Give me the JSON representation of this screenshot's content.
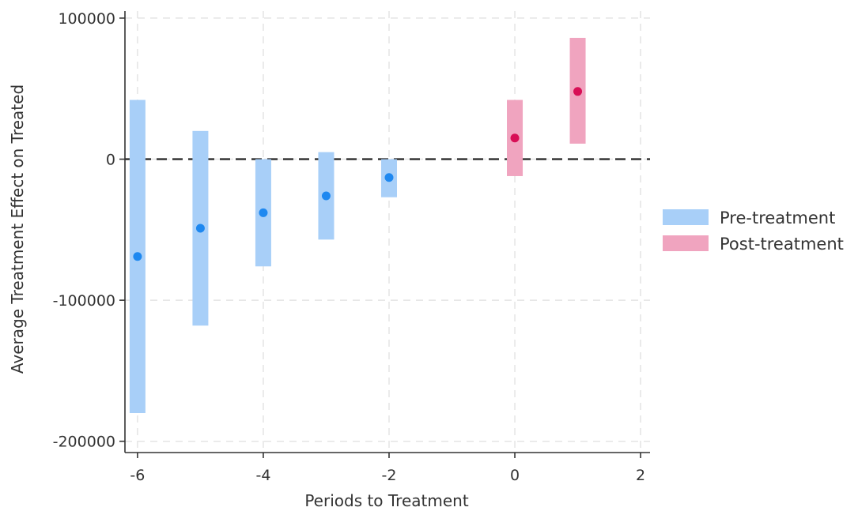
{
  "chart_data": {
    "type": "scatter",
    "xlabel": "Periods to Treatment",
    "ylabel": "Average Treatment Effect on Treated",
    "xlim": [
      -6.2,
      2.15
    ],
    "ylim": [
      -208000,
      105000
    ],
    "x_ticks": [
      -6,
      -4,
      -2,
      0,
      2
    ],
    "x_tick_labels": [
      "-6",
      "-4",
      "-2",
      "0",
      "2"
    ],
    "y_ticks": [
      -200000,
      -100000,
      0,
      100000
    ],
    "y_tick_labels": [
      "-200000",
      "-100000",
      "0",
      "100000"
    ],
    "x_gridlines": [
      -6,
      -4,
      -2,
      0,
      2
    ],
    "y_gridlines": [
      -200000,
      -100000,
      0,
      100000
    ],
    "grid": true,
    "reference_line": {
      "y": 0,
      "style": "dashed",
      "color": "#222222"
    },
    "legend_placement": "right",
    "series": [
      {
        "name": "Pre-treatment",
        "bar_color": "#a8cff8",
        "point_color": "#1e88f0",
        "points": [
          {
            "x": -6,
            "y": -69000,
            "lower": -180000,
            "upper": 42000
          },
          {
            "x": -5,
            "y": -49000,
            "lower": -118000,
            "upper": 20000
          },
          {
            "x": -4,
            "y": -38000,
            "lower": -76000,
            "upper": 0
          },
          {
            "x": -3,
            "y": -26000,
            "lower": -57000,
            "upper": 5000
          },
          {
            "x": -2,
            "y": -13000,
            "lower": -27000,
            "upper": 0
          }
        ]
      },
      {
        "name": "Post-treatment",
        "bar_color": "#f0a4bf",
        "point_color": "#d80f56",
        "points": [
          {
            "x": 0,
            "y": 15000,
            "lower": -12000,
            "upper": 42000
          },
          {
            "x": 1,
            "y": 48000,
            "lower": 11000,
            "upper": 86000
          }
        ]
      }
    ]
  }
}
